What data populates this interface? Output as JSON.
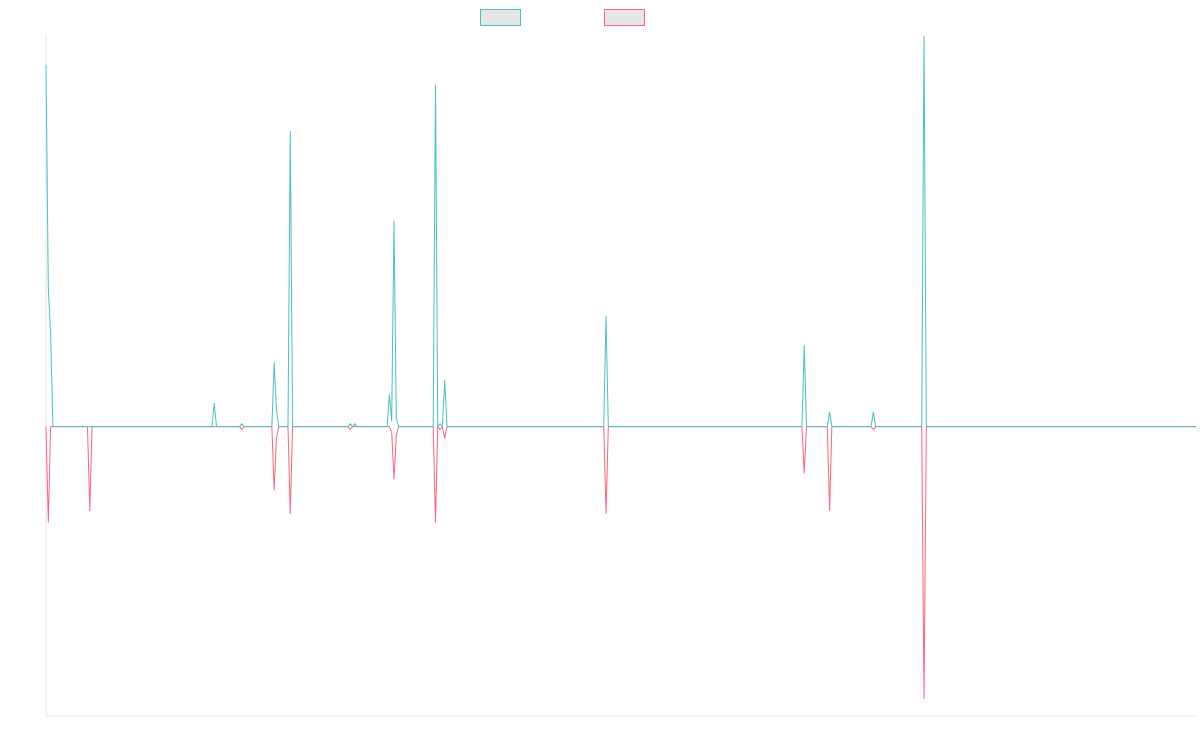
{
  "chart_data": {
    "type": "line",
    "title": "",
    "xlabel": "",
    "ylabel": "",
    "x_count": 500,
    "ylim": [
      -1.0,
      1.35
    ],
    "grid": false,
    "legend_position": "top-center",
    "series": [
      {
        "label": "",
        "color": "#4bc0c0",
        "fill": "#e6e6e6",
        "points": [
          [
            0,
            1.25
          ],
          [
            1,
            0.48
          ],
          [
            2,
            0.32
          ],
          [
            3,
            0
          ],
          [
            72,
            0
          ],
          [
            73,
            0.08
          ],
          [
            74,
            0
          ],
          [
            84,
            0
          ],
          [
            85,
            0.01
          ],
          [
            86,
            0
          ],
          [
            98,
            0
          ],
          [
            99,
            0.22
          ],
          [
            100,
            0.06
          ],
          [
            101,
            0
          ],
          [
            105,
            0
          ],
          [
            106,
            1.02
          ],
          [
            107,
            0
          ],
          [
            131,
            0
          ],
          [
            132,
            0.01
          ],
          [
            133,
            0
          ],
          [
            134,
            0.01
          ],
          [
            135,
            0
          ],
          [
            148,
            0
          ],
          [
            149,
            0.11
          ],
          [
            150,
            0.02
          ],
          [
            151,
            0.71
          ],
          [
            152,
            0.03
          ],
          [
            153,
            0
          ],
          [
            168,
            0
          ],
          [
            169,
            1.18
          ],
          [
            170,
            0
          ],
          [
            171,
            0.01
          ],
          [
            172,
            0
          ],
          [
            173,
            0.16
          ],
          [
            174,
            0
          ],
          [
            242,
            0
          ],
          [
            243,
            0.38
          ],
          [
            244,
            0
          ],
          [
            328,
            0
          ],
          [
            329,
            0.28
          ],
          [
            330,
            0
          ],
          [
            339,
            0
          ],
          [
            340,
            0.05
          ],
          [
            341,
            0
          ],
          [
            358,
            0
          ],
          [
            359,
            0.05
          ],
          [
            360,
            0
          ],
          [
            380,
            0
          ],
          [
            381,
            1.35
          ],
          [
            382,
            0
          ],
          [
            499,
            0
          ]
        ]
      },
      {
        "label": "",
        "color": "#ff6384",
        "fill": "#e6e6e6",
        "points": [
          [
            0,
            0
          ],
          [
            1,
            -0.33
          ],
          [
            2,
            0
          ],
          [
            18,
            0
          ],
          [
            19,
            -0.29
          ],
          [
            20,
            0
          ],
          [
            84,
            0
          ],
          [
            85,
            -0.01
          ],
          [
            86,
            0
          ],
          [
            98,
            0
          ],
          [
            99,
            -0.22
          ],
          [
            100,
            -0.04
          ],
          [
            101,
            0
          ],
          [
            105,
            0
          ],
          [
            106,
            -0.3
          ],
          [
            107,
            0
          ],
          [
            131,
            0
          ],
          [
            132,
            -0.01
          ],
          [
            133,
            0
          ],
          [
            149,
            0
          ],
          [
            150,
            -0.02
          ],
          [
            151,
            -0.18
          ],
          [
            152,
            -0.03
          ],
          [
            153,
            0
          ],
          [
            168,
            0
          ],
          [
            169,
            -0.33
          ],
          [
            170,
            0
          ],
          [
            171,
            -0.01
          ],
          [
            172,
            0
          ],
          [
            173,
            -0.04
          ],
          [
            174,
            0
          ],
          [
            242,
            0
          ],
          [
            243,
            -0.3
          ],
          [
            244,
            0
          ],
          [
            328,
            0
          ],
          [
            329,
            -0.16
          ],
          [
            330,
            0
          ],
          [
            339,
            0
          ],
          [
            340,
            -0.29
          ],
          [
            341,
            0
          ],
          [
            358,
            0
          ],
          [
            359,
            -0.01
          ],
          [
            360,
            0
          ],
          [
            380,
            0
          ],
          [
            381,
            -0.94
          ],
          [
            382,
            0
          ],
          [
            499,
            0
          ]
        ]
      }
    ]
  }
}
